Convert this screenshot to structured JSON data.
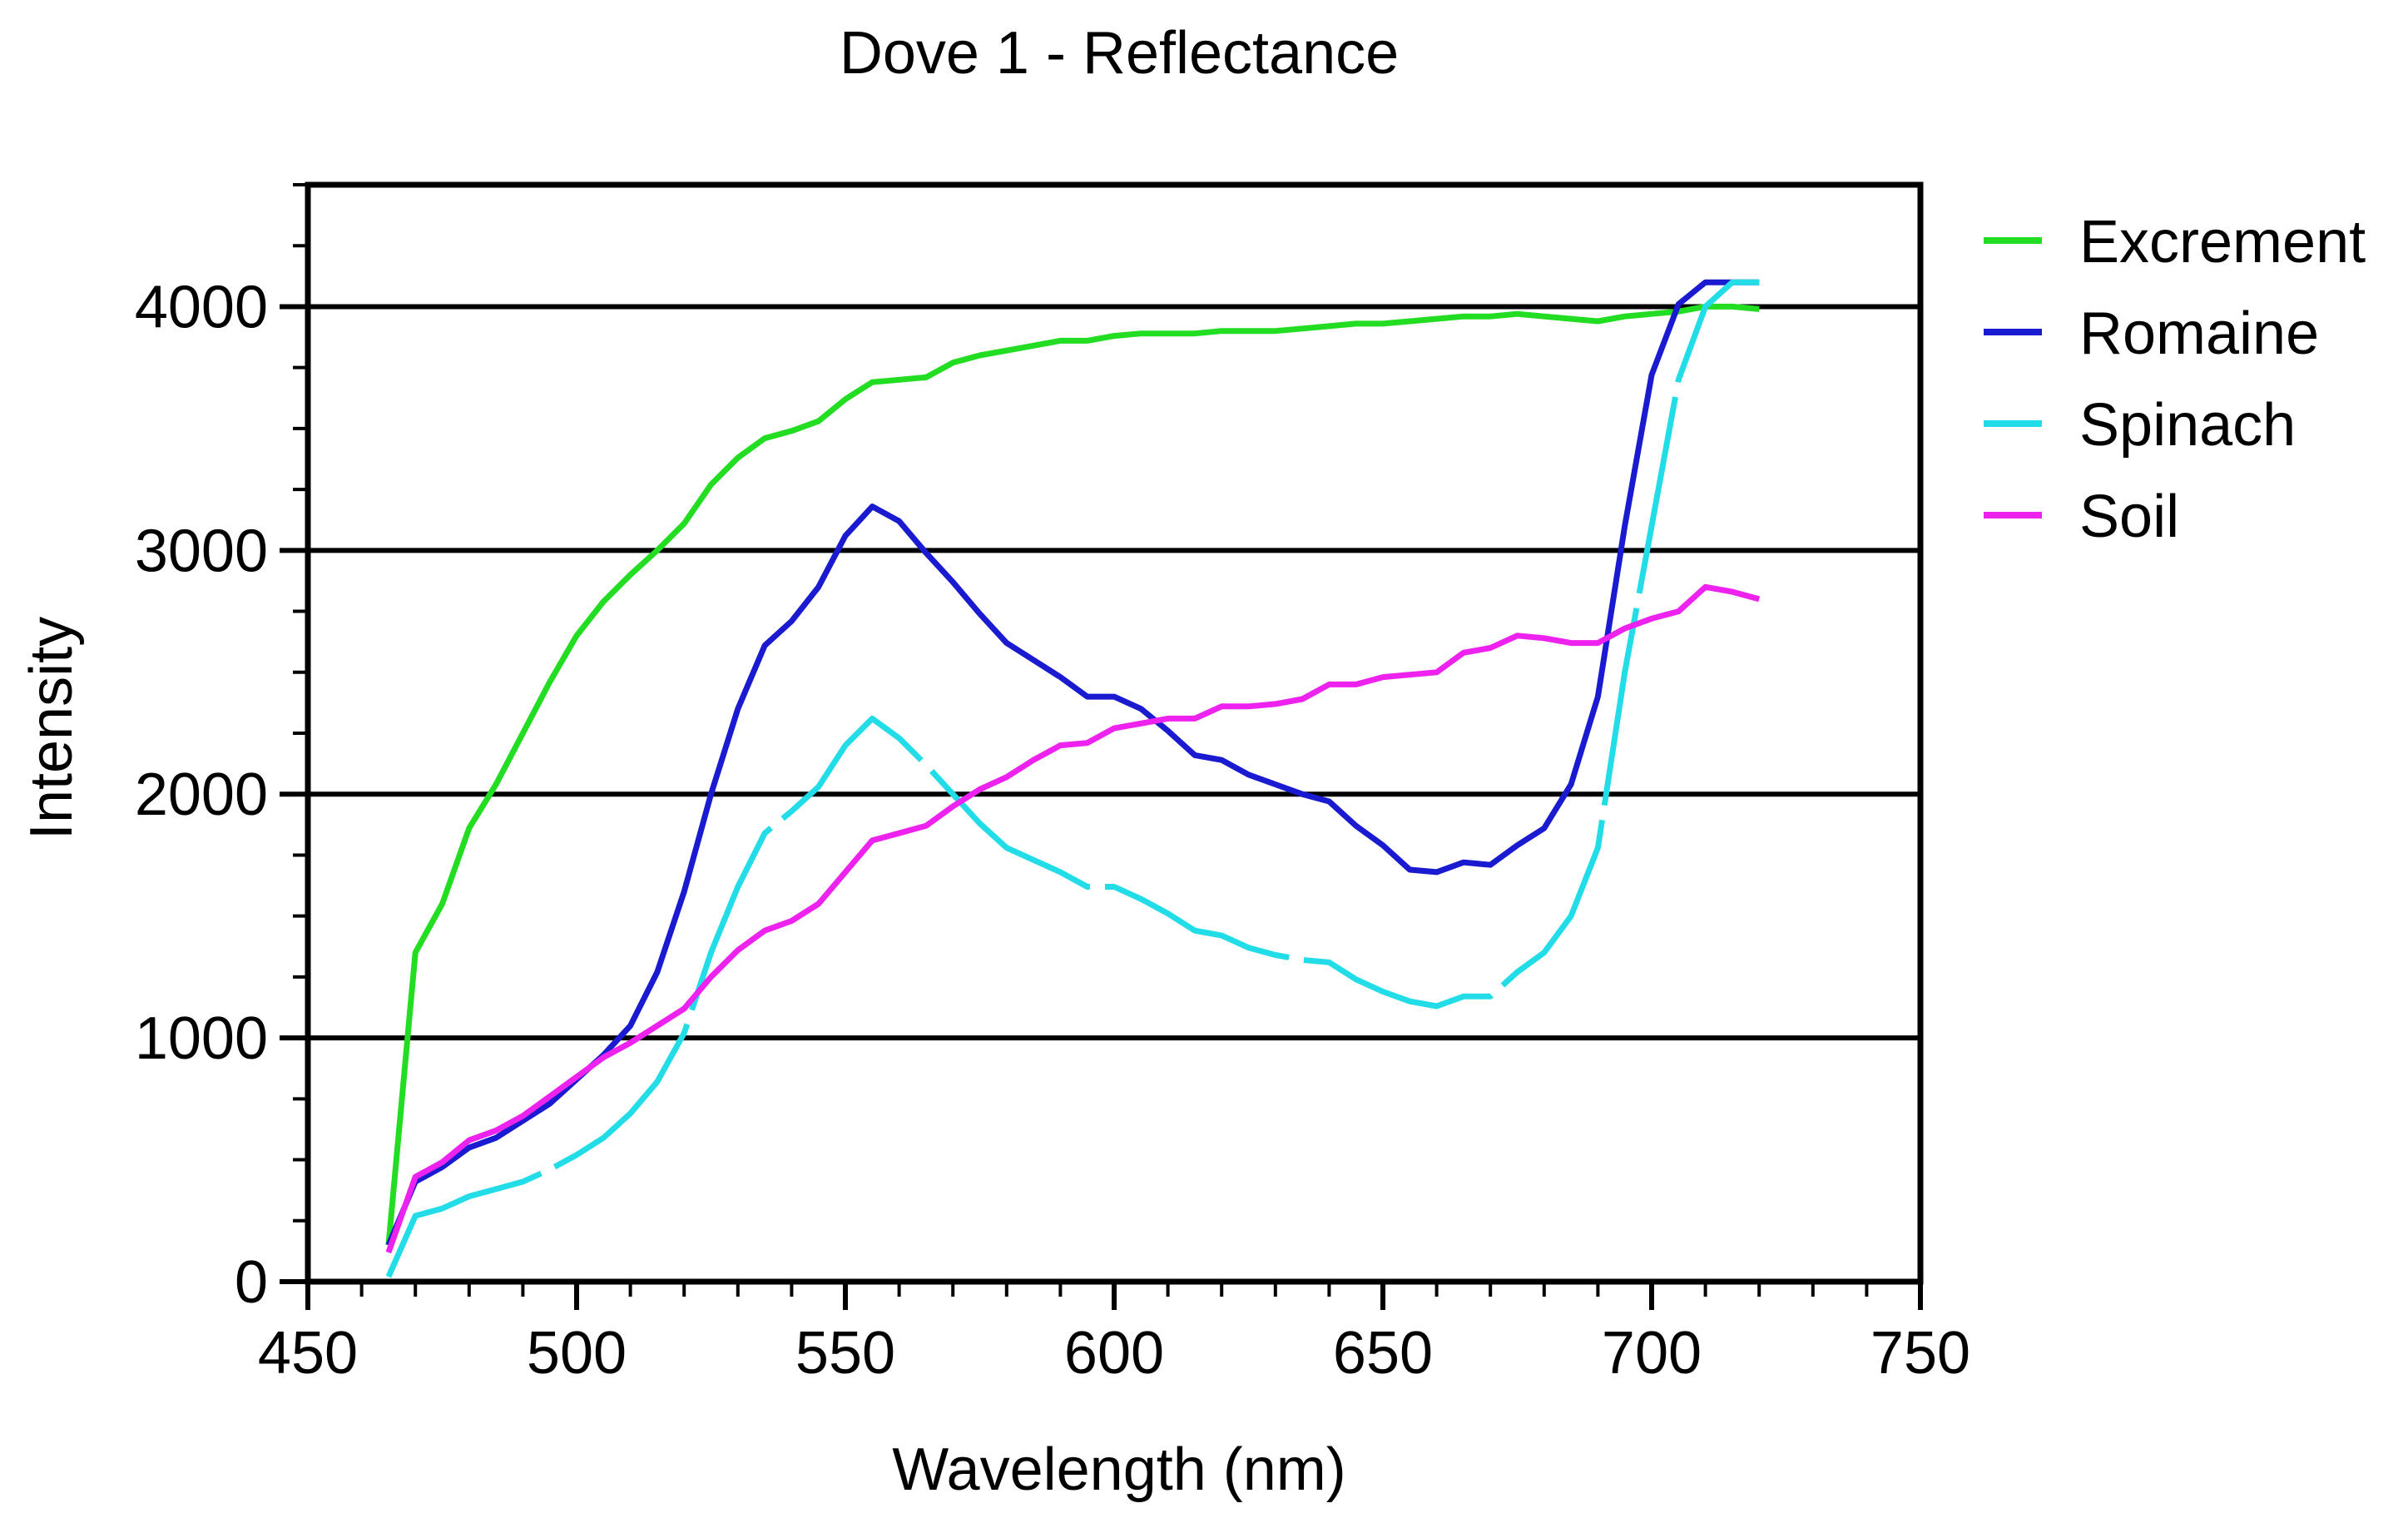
{
  "chart_data": {
    "type": "line",
    "title": "Dove 1 - Reflectance",
    "xlabel": "Wavelength (nm)",
    "ylabel": "Intensity",
    "xlim": [
      450,
      750
    ],
    "ylim": [
      0,
      4500
    ],
    "x_ticks": [
      450,
      500,
      550,
      600,
      650,
      700,
      750
    ],
    "y_ticks": [
      0,
      1000,
      2000,
      3000,
      4000
    ],
    "grid": "horizontal lines at y ticks",
    "legend_position": "right",
    "series": [
      {
        "name": "Excrement",
        "color": "#22dd22",
        "dashed": false,
        "x": [
          465,
          470,
          475,
          480,
          485,
          490,
          495,
          500,
          505,
          510,
          515,
          520,
          525,
          530,
          535,
          540,
          545,
          550,
          555,
          560,
          565,
          570,
          575,
          580,
          585,
          590,
          595,
          600,
          605,
          610,
          615,
          620,
          625,
          630,
          635,
          640,
          645,
          650,
          655,
          660,
          665,
          670,
          675,
          680,
          685,
          690,
          695,
          700,
          705,
          710,
          715,
          720
        ],
        "y": [
          150,
          1350,
          1550,
          1860,
          2040,
          2250,
          2460,
          2650,
          2790,
          2900,
          3000,
          3110,
          3270,
          3380,
          3460,
          3490,
          3530,
          3620,
          3690,
          3700,
          3710,
          3770,
          3800,
          3820,
          3840,
          3860,
          3860,
          3880,
          3890,
          3890,
          3890,
          3900,
          3900,
          3900,
          3910,
          3920,
          3930,
          3930,
          3940,
          3950,
          3960,
          3960,
          3970,
          3960,
          3950,
          3940,
          3960,
          3970,
          3980,
          4000,
          4000,
          3990
        ]
      },
      {
        "name": "Romaine",
        "color": "#1a1ad0",
        "dashed": false,
        "x": [
          465,
          470,
          475,
          480,
          485,
          490,
          495,
          500,
          505,
          510,
          515,
          520,
          525,
          530,
          535,
          540,
          545,
          550,
          555,
          560,
          565,
          570,
          575,
          580,
          585,
          590,
          595,
          600,
          605,
          610,
          615,
          620,
          625,
          630,
          635,
          640,
          645,
          650,
          655,
          660,
          665,
          670,
          675,
          680,
          685,
          690,
          695,
          700,
          705,
          710,
          715,
          720
        ],
        "y": [
          150,
          410,
          470,
          550,
          590,
          660,
          730,
          830,
          930,
          1050,
          1270,
          1600,
          2000,
          2350,
          2610,
          2710,
          2850,
          3060,
          3180,
          3120,
          2990,
          2870,
          2740,
          2620,
          2550,
          2480,
          2400,
          2400,
          2350,
          2260,
          2160,
          2140,
          2080,
          2040,
          2000,
          1970,
          1870,
          1790,
          1690,
          1680,
          1720,
          1710,
          1790,
          1860,
          2040,
          2400,
          3100,
          3720,
          4010,
          4100,
          4100,
          4100
        ]
      },
      {
        "name": "Spinach",
        "color": "#22dde8",
        "dashed": true,
        "x": [
          465,
          470,
          475,
          480,
          485,
          490,
          495,
          500,
          505,
          510,
          515,
          520,
          525,
          530,
          535,
          540,
          545,
          550,
          555,
          560,
          565,
          570,
          575,
          580,
          585,
          590,
          595,
          600,
          605,
          610,
          615,
          620,
          625,
          630,
          635,
          640,
          645,
          650,
          655,
          660,
          665,
          670,
          675,
          680,
          685,
          690,
          695,
          700,
          705,
          710,
          715,
          720
        ],
        "y": [
          20,
          270,
          300,
          350,
          380,
          410,
          460,
          520,
          590,
          690,
          820,
          1020,
          1350,
          1620,
          1840,
          1930,
          2030,
          2200,
          2310,
          2230,
          2120,
          2000,
          1880,
          1780,
          1730,
          1680,
          1620,
          1620,
          1570,
          1510,
          1440,
          1420,
          1370,
          1340,
          1320,
          1310,
          1240,
          1190,
          1150,
          1130,
          1170,
          1170,
          1270,
          1350,
          1500,
          1780,
          2500,
          3100,
          3700,
          4000,
          4100,
          4100
        ]
      },
      {
        "name": "Soil",
        "color": "#ee22ee",
        "dashed": false,
        "x": [
          465,
          470,
          475,
          480,
          485,
          490,
          495,
          500,
          505,
          510,
          515,
          520,
          525,
          530,
          535,
          540,
          545,
          550,
          555,
          560,
          565,
          570,
          575,
          580,
          585,
          590,
          595,
          600,
          605,
          610,
          615,
          620,
          625,
          630,
          635,
          640,
          645,
          650,
          655,
          660,
          665,
          670,
          675,
          680,
          685,
          690,
          695,
          700,
          705,
          710,
          715,
          720
        ],
        "y": [
          120,
          430,
          490,
          580,
          620,
          680,
          760,
          840,
          920,
          980,
          1050,
          1120,
          1250,
          1360,
          1440,
          1480,
          1550,
          1680,
          1810,
          1840,
          1870,
          1950,
          2020,
          2070,
          2140,
          2200,
          2210,
          2270,
          2290,
          2310,
          2310,
          2360,
          2360,
          2370,
          2390,
          2450,
          2450,
          2480,
          2490,
          2500,
          2580,
          2600,
          2650,
          2640,
          2620,
          2620,
          2680,
          2720,
          2750,
          2850,
          2830,
          2800
        ]
      }
    ]
  }
}
